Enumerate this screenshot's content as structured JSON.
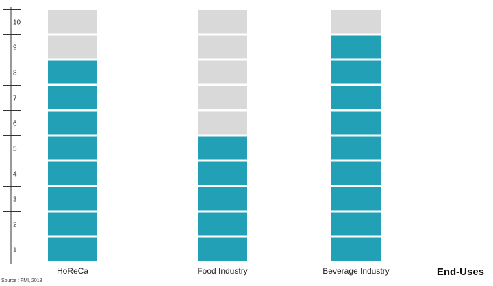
{
  "chart_data": {
    "type": "bar",
    "variant": "stacked-block-scale",
    "categories": [
      "HoReCa",
      "Food Industry",
      "Beverage Industry"
    ],
    "values": [
      8,
      5,
      9
    ],
    "scale_max": 10,
    "y_ticks": [
      "1",
      "2",
      "3",
      "4",
      "5",
      "6",
      "7",
      "8",
      "9",
      "10"
    ],
    "xlabel": "End-Uses",
    "ylabel": "",
    "title": "",
    "source": "Source : FMI, 2018",
    "colors": {
      "filled": "#22a1b6",
      "empty": "#d9d9d9",
      "axis": "#333333"
    },
    "grid": false
  }
}
